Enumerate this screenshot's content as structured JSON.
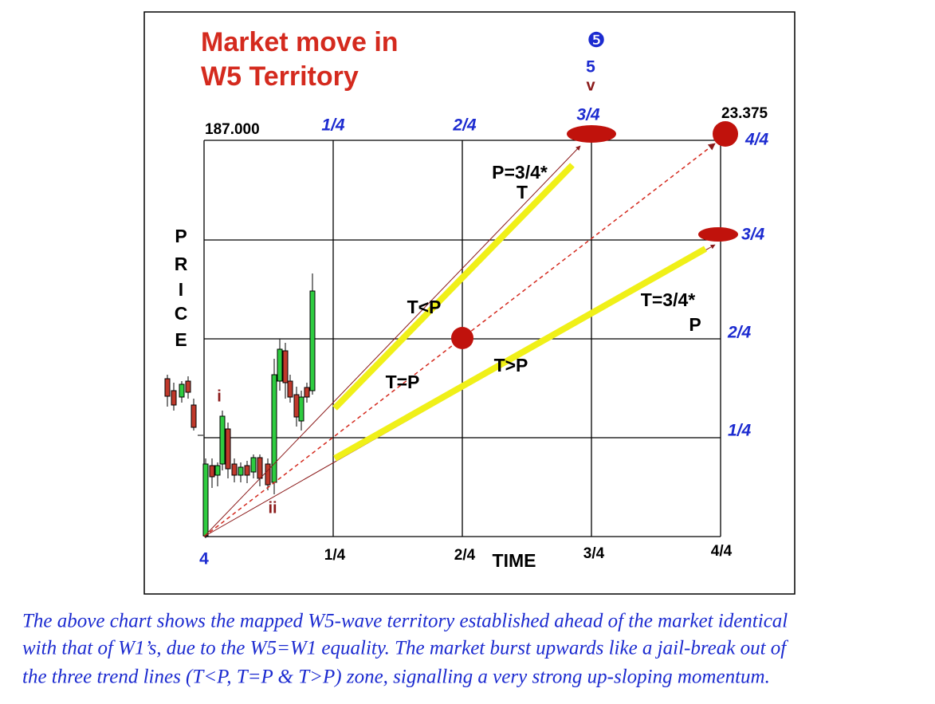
{
  "title": [
    "Market move in",
    "W5 Territory"
  ],
  "wave_marker": {
    "symbol": "❺",
    "number": "5",
    "roman": "v"
  },
  "start_price": "187.000",
  "end_price": "23.375",
  "top_labels": [
    "1/4",
    "2/4",
    "3/4"
  ],
  "right_labels": [
    "4/4",
    "3/4",
    "2/4",
    "1/4"
  ],
  "bottom_labels": [
    "4",
    "1/4",
    "2/4",
    "3/4",
    "4/4"
  ],
  "time_title": "TIME",
  "price_title": [
    "P",
    "R",
    "I",
    "C",
    "E"
  ],
  "line_labels": {
    "top": [
      "P=3/4*",
      "T"
    ],
    "upper": "T<P",
    "middle": "T=P",
    "lower": "T>P",
    "bottom": [
      "T=3/4*",
      "P"
    ]
  },
  "waves": [
    "i",
    "ii"
  ],
  "caption": [
    "The above chart shows the mapped W5-wave territory established ahead of the market identical",
    "with that of W1’s, due to the W5=W1 equality. The market burst upwards like a jail-break out of",
    "the three trend lines (T<P, T=P & T>P) zone, signalling a very strong up-sloping momentum."
  ]
}
